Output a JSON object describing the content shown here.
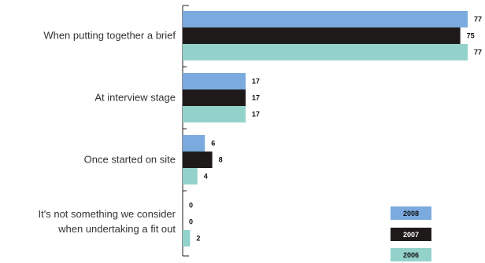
{
  "chart_data": {
    "type": "bar",
    "orientation": "horizontal",
    "title": "",
    "xlabel": "",
    "ylabel": "",
    "xlim": [
      0,
      77
    ],
    "grid": false,
    "legend_position": "bottom-right",
    "categories": [
      [
        "When putting together a brief"
      ],
      [
        "At interview stage"
      ],
      [
        "Once started on site"
      ],
      [
        "It's not something we consider",
        "when undertaking a fit out"
      ]
    ],
    "series": [
      {
        "name": "2008",
        "color": "#7aaade",
        "legend_text_color": "#111111",
        "values": [
          77,
          17,
          6,
          0
        ]
      },
      {
        "name": "2007",
        "color": "#1f1a1a",
        "legend_text_color": "#ffffff",
        "values": [
          75,
          17,
          8,
          0
        ]
      },
      {
        "name": "2006",
        "color": "#93d2cb",
        "legend_text_color": "#111111",
        "values": [
          77,
          17,
          4,
          2
        ]
      }
    ]
  }
}
